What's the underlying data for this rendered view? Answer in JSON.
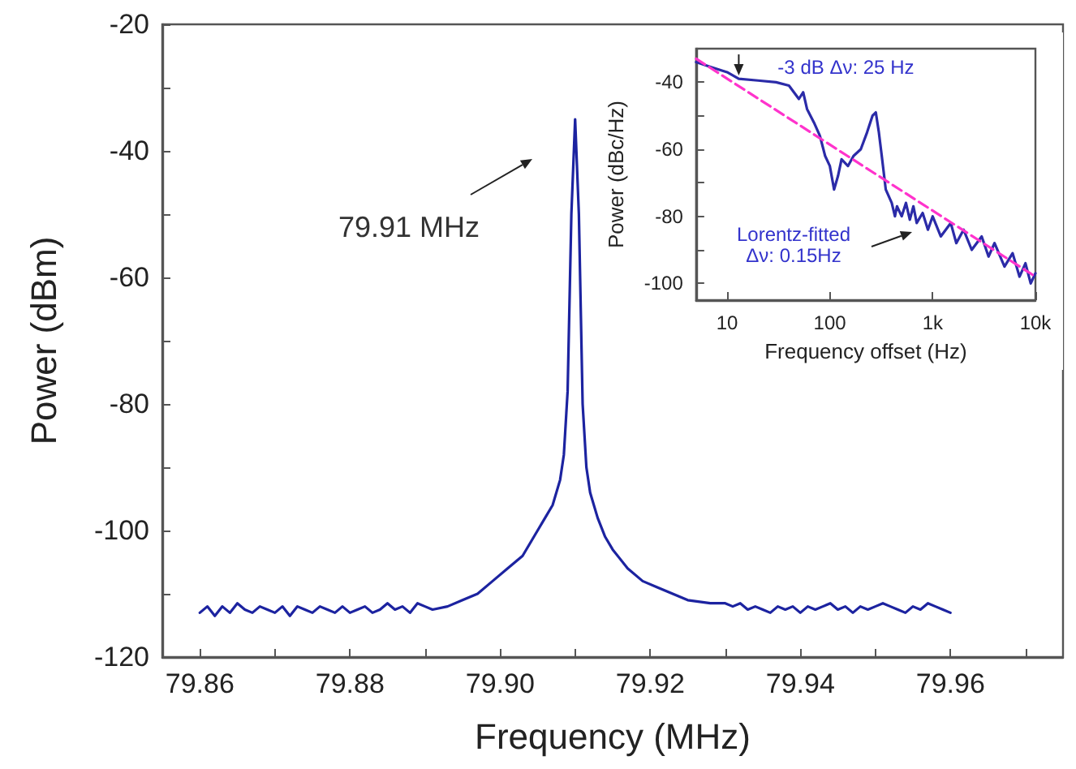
{
  "chart_data": [
    {
      "type": "line",
      "xlabel": "Frequency (MHz)",
      "ylabel": "Power (dBm)",
      "color": "#1c23a0",
      "grid": false,
      "marker": "none",
      "xlim": [
        79.855,
        79.975
      ],
      "ylim": [
        -120,
        -20
      ],
      "xticks": [
        79.86,
        {
          "value": 79.87,
          "label": null
        },
        79.88,
        {
          "value": 79.89,
          "label": null
        },
        {
          "value": 79.9,
          "label": "79.90"
        },
        {
          "value": 79.91,
          "label": null
        },
        79.92,
        {
          "value": 79.93,
          "label": null
        },
        79.94,
        {
          "value": 79.95,
          "label": null
        },
        79.96,
        {
          "value": 79.97,
          "label": null
        }
      ],
      "yticks": [
        -120,
        {
          "value": -110,
          "label": null
        },
        -100,
        {
          "value": -90,
          "label": null
        },
        -80,
        {
          "value": -70,
          "label": null
        },
        -60,
        {
          "value": -50,
          "label": null
        },
        -40,
        {
          "value": -30,
          "label": null
        },
        -20
      ],
      "x": [
        79.86,
        79.861,
        79.862,
        79.863,
        79.864,
        79.865,
        79.866,
        79.867,
        79.868,
        79.869,
        79.87,
        79.871,
        79.872,
        79.873,
        79.874,
        79.875,
        79.876,
        79.877,
        79.878,
        79.879,
        79.88,
        79.881,
        79.882,
        79.883,
        79.884,
        79.885,
        79.886,
        79.887,
        79.888,
        79.889,
        79.89,
        79.891,
        79.893,
        79.895,
        79.897,
        79.899,
        79.901,
        79.903,
        79.905,
        79.906,
        79.907,
        79.908,
        79.9085,
        79.909,
        79.9095,
        79.91,
        79.9105,
        79.911,
        79.9115,
        79.912,
        79.913,
        79.914,
        79.915,
        79.917,
        79.919,
        79.921,
        79.923,
        79.925,
        79.928,
        79.93,
        79.931,
        79.932,
        79.933,
        79.934,
        79.935,
        79.936,
        79.937,
        79.938,
        79.939,
        79.94,
        79.941,
        79.942,
        79.943,
        79.944,
        79.945,
        79.946,
        79.947,
        79.948,
        79.949,
        79.95,
        79.951,
        79.952,
        79.953,
        79.954,
        79.955,
        79.956,
        79.957,
        79.958,
        79.959,
        79.96
      ],
      "values": [
        -113,
        -112,
        -113.5,
        -112,
        -113,
        -111.5,
        -112.5,
        -113,
        -112,
        -112.5,
        -113,
        -112,
        -113.5,
        -112,
        -112.5,
        -113,
        -112,
        -112.5,
        -113,
        -112,
        -113,
        -112.5,
        -112,
        -113,
        -112.5,
        -111.5,
        -112.5,
        -112,
        -113,
        -111.5,
        -112,
        -112.5,
        -112,
        -111,
        -110,
        -108,
        -106,
        -104,
        -100,
        -98,
        -96,
        -92,
        -88,
        -78,
        -50,
        -35,
        -50,
        -80,
        -90,
        -94,
        -98,
        -101,
        -103,
        -106,
        -108,
        -109,
        -110,
        -111,
        -111.5,
        -111.5,
        -112,
        -111.5,
        -112.5,
        -112,
        -112.5,
        -113,
        -112,
        -112.5,
        -112,
        -113,
        -112,
        -112.5,
        -112,
        -111.5,
        -112.5,
        -112,
        -113,
        -112,
        -112.5,
        -112,
        -111.5,
        -112,
        -112.5,
        -113,
        -112,
        -112.5,
        -111.5,
        -112,
        -112.5,
        -113
      ],
      "annotations": [
        "79.91 MHz"
      ]
    },
    {
      "type": "line",
      "xlabel": "Frequency offset (Hz)",
      "ylabel": "Power (dBc/Hz)",
      "log": "x",
      "grid": false,
      "marker": "none",
      "xlim": [
        5,
        10000
      ],
      "ylim": [
        -105,
        -30
      ],
      "xticks": [
        10,
        100,
        {
          "value": 1000,
          "label": "1k"
        },
        {
          "value": 10000,
          "label": "10k"
        }
      ],
      "yticks": [
        -100,
        {
          "value": -90,
          "label": null
        },
        -80,
        {
          "value": -70,
          "label": null
        },
        -60,
        {
          "value": -50,
          "label": null
        },
        -40
      ],
      "series": [
        {
          "color": "#2b2ba8",
          "line_style": "solid",
          "x": [
            5,
            7,
            10,
            13,
            20,
            30,
            40,
            50,
            55,
            60,
            70,
            80,
            90,
            100,
            110,
            120,
            130,
            150,
            170,
            200,
            230,
            260,
            280,
            300,
            320,
            350,
            400,
            430,
            450,
            500,
            550,
            600,
            650,
            700,
            800,
            900,
            1000,
            1200,
            1500,
            1700,
            2000,
            2400,
            3000,
            3500,
            4000,
            5000,
            6000,
            7000,
            8000,
            9000,
            10000
          ],
          "values": [
            -34,
            -35.5,
            -37,
            -39,
            -39.5,
            -40,
            -41,
            -45,
            -43,
            -48,
            -52,
            -56,
            -62,
            -65,
            -72,
            -68,
            -63,
            -65,
            -62,
            -60,
            -55,
            -50,
            -49,
            -55,
            -62,
            -72,
            -76,
            -80,
            -77,
            -80,
            -76,
            -81,
            -77,
            -82,
            -79,
            -84,
            -80,
            -86,
            -82,
            -88,
            -84,
            -90,
            -86,
            -92,
            -88,
            -95,
            -91,
            -98,
            -94,
            -100,
            -97
          ]
        },
        {
          "color": "#ff33cc",
          "line_style": "dashed",
          "x": [
            5,
            10000
          ],
          "values": [
            -33,
            -98
          ]
        }
      ],
      "annotations": [
        {
          "text": "-3 dB Δν: 25 Hz",
          "x": 13,
          "y": -38
        },
        "Lorentz-fitted\nΔν: 0.15Hz"
      ]
    }
  ]
}
